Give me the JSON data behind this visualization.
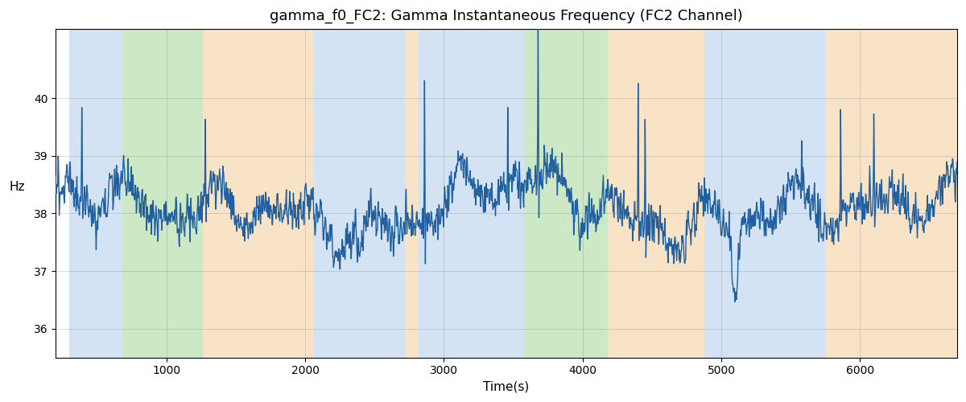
{
  "title": "gamma_f0_FC2: Gamma Instantaneous Frequency (FC2 Channel)",
  "xlabel": "Time(s)",
  "ylabel": "Hz",
  "ylim": [
    35.5,
    41.2
  ],
  "xlim": [
    200,
    6700
  ],
  "yticks": [
    36,
    37,
    38,
    39,
    40
  ],
  "xticks": [
    1000,
    2000,
    3000,
    4000,
    5000,
    6000
  ],
  "line_color": "#2060a0",
  "line_width": 1.0,
  "background_color": "#ffffff",
  "bands": [
    {
      "xmin": 300,
      "xmax": 680,
      "color": "#aac8e8",
      "alpha": 0.5
    },
    {
      "xmin": 680,
      "xmax": 1260,
      "color": "#90cc80",
      "alpha": 0.45
    },
    {
      "xmin": 1260,
      "xmax": 2060,
      "color": "#f5c890",
      "alpha": 0.5
    },
    {
      "xmin": 2060,
      "xmax": 2720,
      "color": "#aac8e8",
      "alpha": 0.5
    },
    {
      "xmin": 2720,
      "xmax": 2820,
      "color": "#f5c890",
      "alpha": 0.5
    },
    {
      "xmin": 2820,
      "xmax": 3580,
      "color": "#aac8e8",
      "alpha": 0.5
    },
    {
      "xmin": 3580,
      "xmax": 4180,
      "color": "#90cc80",
      "alpha": 0.45
    },
    {
      "xmin": 4180,
      "xmax": 4880,
      "color": "#f5c890",
      "alpha": 0.5
    },
    {
      "xmin": 4880,
      "xmax": 5750,
      "color": "#aac8e8",
      "alpha": 0.5
    },
    {
      "xmin": 5750,
      "xmax": 6700,
      "color": "#f5c890",
      "alpha": 0.5
    }
  ],
  "title_fontsize": 13
}
